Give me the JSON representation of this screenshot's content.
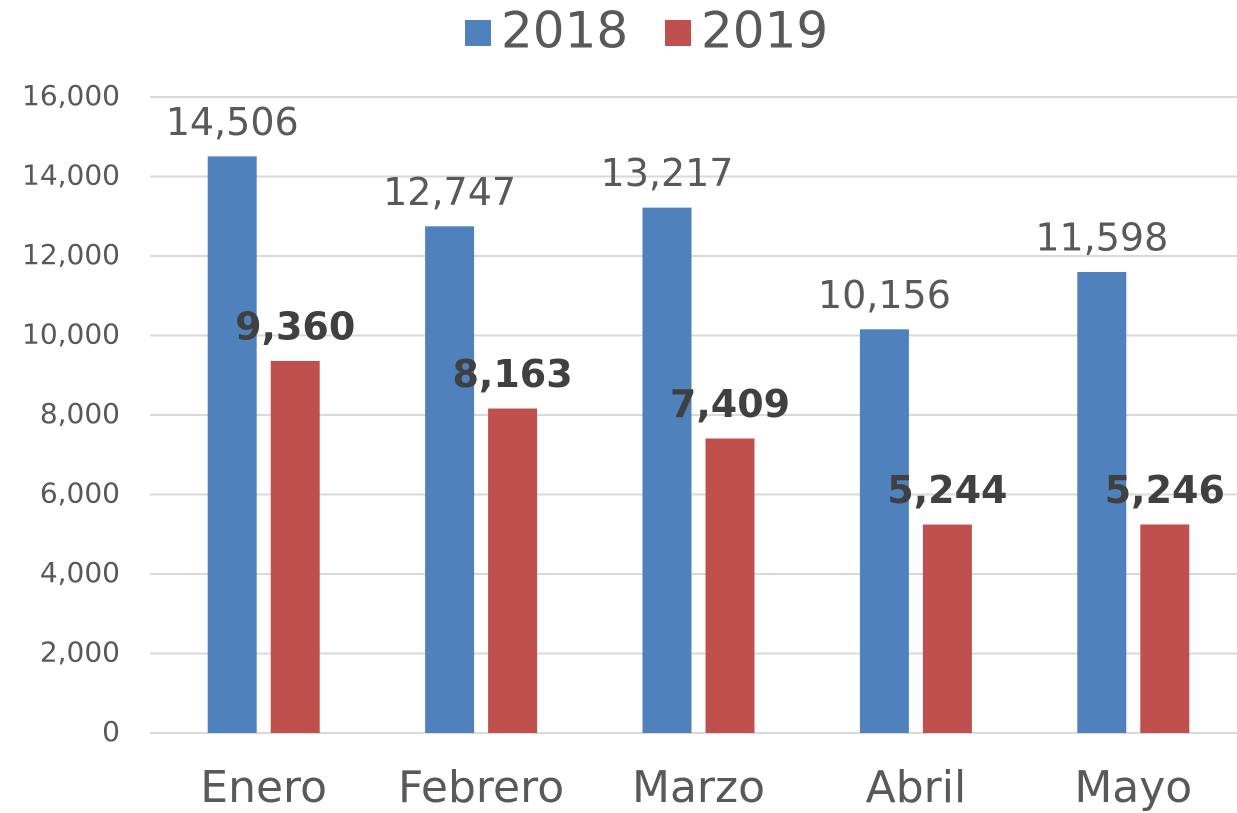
{
  "chart_data": {
    "type": "bar",
    "categories": [
      "Enero",
      "Febrero",
      "Marzo",
      "Abril",
      "Mayo"
    ],
    "series": [
      {
        "name": "2018",
        "color": "#4f81bd",
        "values": [
          14506,
          12747,
          13217,
          10156,
          11598
        ],
        "value_labels": [
          "14,506",
          "12,747",
          "13,217",
          "10,156",
          "11,598"
        ]
      },
      {
        "name": "2019",
        "color": "#c0504d",
        "values": [
          9360,
          8163,
          7409,
          5244,
          5246
        ],
        "value_labels": [
          "9,360",
          "8,163",
          "7,409",
          "5,244",
          "5,246"
        ]
      }
    ],
    "ylim": [
      0,
      16000
    ],
    "yticks": [
      {
        "value": 0,
        "label": "0"
      },
      {
        "value": 2000,
        "label": "2,000"
      },
      {
        "value": 4000,
        "label": "4,000"
      },
      {
        "value": 6000,
        "label": "6,000"
      },
      {
        "value": 8000,
        "label": "8,000"
      },
      {
        "value": 10000,
        "label": "10,000"
      },
      {
        "value": 12000,
        "label": "12,000"
      },
      {
        "value": 14000,
        "label": "14,000"
      },
      {
        "value": 16000,
        "label": "16,000"
      }
    ],
    "grid": true,
    "legend": "top"
  }
}
